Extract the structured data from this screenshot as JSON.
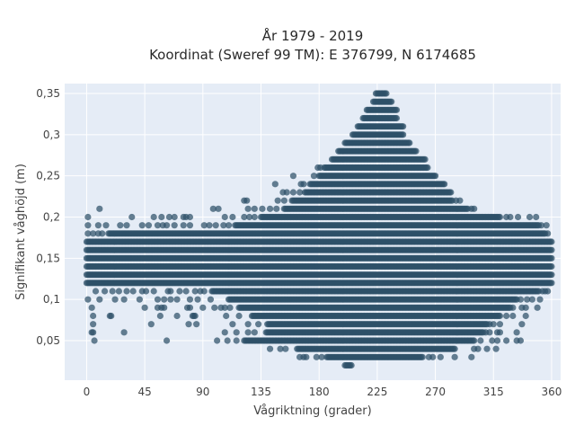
{
  "chart_data": {
    "type": "scatter",
    "title": "År 1979 - 2019",
    "subtitle": "Koordinat (Sweref 99 TM): E 376799, N 6174685",
    "xlabel": "Vågriktning (grader)",
    "ylabel": "Signifikant våghöjd (m)",
    "xlim": [
      -17,
      367
    ],
    "ylim": [
      0.002,
      0.362
    ],
    "x_ticks": [
      0,
      45,
      90,
      135,
      180,
      225,
      270,
      315,
      360
    ],
    "x_tick_labels": [
      "0",
      "45",
      "90",
      "135",
      "180",
      "225",
      "270",
      "315",
      "360"
    ],
    "y_ticks": [
      0.05,
      0.1,
      0.15,
      0.2,
      0.25,
      0.3,
      0.35
    ],
    "y_tick_labels": [
      "0,05",
      "0,1",
      "0,15",
      "0,2",
      "0,25",
      "0,3",
      "0,35"
    ],
    "grid": true,
    "legend": "none",
    "marker_color": "#2e5068",
    "background_color": "#e5ecf6",
    "value_step": 0.01,
    "direction_step": 1,
    "bands": [
      {
        "y": 0.02,
        "segments": [
          [
            200,
            205
          ]
        ]
      },
      {
        "y": 0.03,
        "segments": [
          [
            186,
            260
          ]
        ],
        "sparse": [
          165,
          168,
          170,
          178,
          182,
          265,
          268,
          274,
          285,
          298
        ]
      },
      {
        "y": 0.04,
        "segments": [
          [
            163,
            285
          ]
        ],
        "sparse": [
          142,
          150,
          154,
          300,
          303,
          310,
          317
        ]
      },
      {
        "y": 0.05,
        "segments": [
          [
            122,
            300
          ]
        ],
        "sparse": [
          6,
          62,
          101,
          109,
          116,
          305,
          314,
          318,
          325,
          333,
          336
        ]
      },
      {
        "y": 0.06,
        "segments": [
          [
            139,
            307
          ]
        ],
        "sparse": [
          4,
          5,
          29,
          107,
          116,
          125,
          130,
          309,
          312,
          318,
          320,
          333
        ]
      },
      {
        "y": 0.07,
        "segments": [
          [
            140,
            310
          ]
        ],
        "sparse": [
          5,
          50,
          79,
          85,
          113,
          125,
          133,
          312,
          315,
          320,
          337
        ]
      },
      {
        "y": 0.08,
        "segments": [
          [
            128,
            320
          ]
        ],
        "sparse": [
          5,
          18,
          19,
          57,
          70,
          82,
          83,
          84,
          108,
          118,
          325,
          330,
          340
        ]
      },
      {
        "y": 0.09,
        "segments": [
          [
            118,
            328
          ]
        ],
        "sparse": [
          4,
          45,
          55,
          58,
          60,
          78,
          80,
          90,
          99,
          104,
          107,
          111,
          330,
          337,
          340,
          349
        ]
      },
      {
        "y": 0.1,
        "segments": [
          [
            110,
            333
          ]
        ],
        "sparse": [
          1,
          10,
          22,
          29,
          41,
          55,
          60,
          65,
          70,
          80,
          86,
          96,
          336,
          341,
          345,
          351
        ]
      },
      {
        "y": 0.11,
        "segments": [
          [
            97,
            350
          ]
        ],
        "sparse": [
          7,
          14,
          20,
          25,
          31,
          36,
          43,
          46,
          52,
          63,
          65,
          72,
          77,
          84,
          88,
          91,
          353,
          355,
          357
        ]
      },
      {
        "y": 0.12,
        "segments": [
          [
            0,
            360
          ]
        ]
      },
      {
        "y": 0.13,
        "segments": [
          [
            0,
            360
          ]
        ]
      },
      {
        "y": 0.14,
        "segments": [
          [
            0,
            360
          ]
        ]
      },
      {
        "y": 0.15,
        "segments": [
          [
            0,
            360
          ]
        ]
      },
      {
        "y": 0.16,
        "segments": [
          [
            0,
            360
          ]
        ]
      },
      {
        "y": 0.17,
        "segments": [
          [
            0,
            360
          ]
        ]
      },
      {
        "y": 0.18,
        "segments": [
          [
            17,
            355
          ]
        ],
        "sparse": [
          1,
          5,
          9,
          12,
          357
        ]
      },
      {
        "y": 0.19,
        "segments": [
          [
            115,
            350
          ]
        ],
        "sparse": [
          1,
          9,
          15,
          26,
          31,
          43,
          48,
          55,
          59,
          62,
          68,
          75,
          80,
          91,
          95,
          100,
          106,
          110,
          352,
          356
        ]
      },
      {
        "y": 0.2,
        "segments": [
          [
            135,
            320
          ]
        ],
        "sparse": [
          1,
          35,
          52,
          58,
          64,
          68,
          75,
          77,
          80,
          107,
          113,
          122,
          126,
          130,
          325,
          328,
          334,
          343,
          348
        ]
      },
      {
        "y": 0.21,
        "segments": [
          [
            153,
            295
          ]
        ],
        "sparse": [
          10,
          98,
          102,
          125,
          130,
          136,
          142,
          147,
          298,
          300
        ]
      },
      {
        "y": 0.22,
        "segments": [
          [
            159,
            283
          ]
        ],
        "sparse": [
          122,
          124,
          148,
          153,
          286,
          289
        ]
      },
      {
        "y": 0.23,
        "segments": [
          [
            169,
            282
          ]
        ],
        "sparse": [
          152,
          155,
          160,
          165
        ]
      },
      {
        "y": 0.24,
        "segments": [
          [
            173,
            277
          ]
        ],
        "sparse": [
          146,
          166,
          168
        ]
      },
      {
        "y": 0.25,
        "segments": [
          [
            180,
            270
          ]
        ],
        "sparse": [
          160,
          176
        ]
      },
      {
        "y": 0.26,
        "segments": [
          [
            184,
            264
          ]
        ],
        "sparse": [
          179,
          181
        ]
      },
      {
        "y": 0.27,
        "segments": [
          [
            190,
            262
          ]
        ]
      },
      {
        "y": 0.28,
        "segments": [
          [
            195,
            255
          ]
        ]
      },
      {
        "y": 0.29,
        "segments": [
          [
            200,
            250
          ]
        ]
      },
      {
        "y": 0.3,
        "segments": [
          [
            206,
            245
          ]
        ]
      },
      {
        "y": 0.31,
        "segments": [
          [
            210,
            245
          ]
        ]
      },
      {
        "y": 0.32,
        "segments": [
          [
            214,
            240
          ]
        ]
      },
      {
        "y": 0.33,
        "segments": [
          [
            217,
            240
          ]
        ]
      },
      {
        "y": 0.34,
        "segments": [
          [
            222,
            236
          ]
        ]
      },
      {
        "y": 0.35,
        "segments": [
          [
            224,
            232
          ]
        ]
      }
    ]
  }
}
